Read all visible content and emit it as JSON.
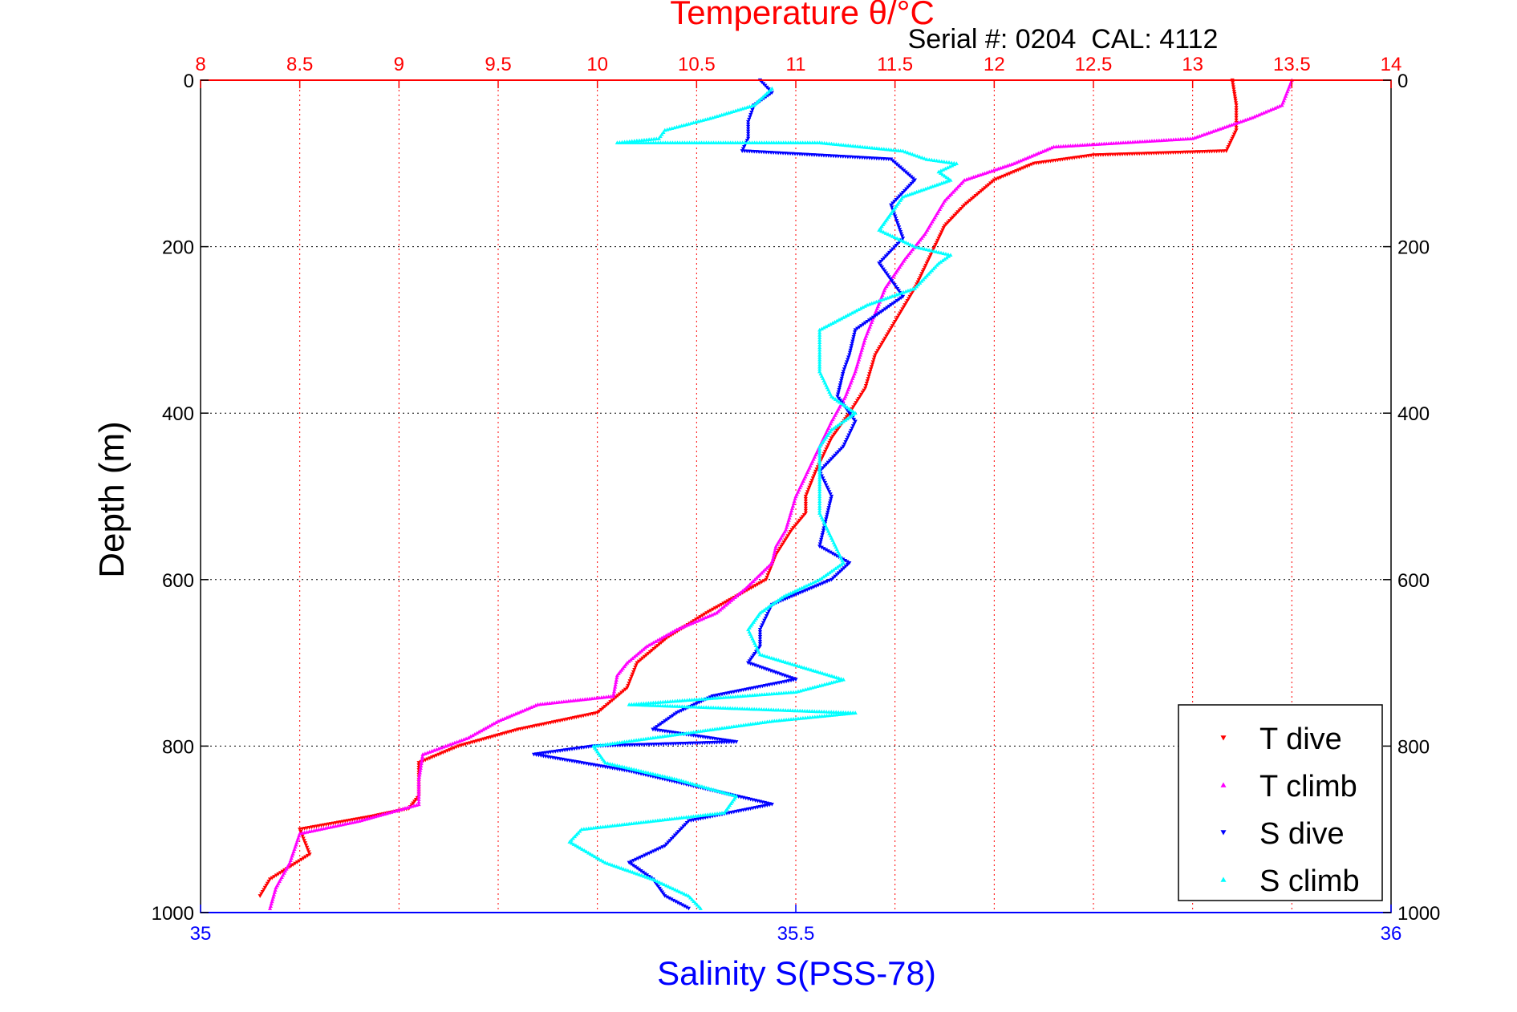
{
  "chart_data": {
    "type": "scatter",
    "title": "Temperature θ/°C",
    "subtitle": "Serial #: 0204  CAL: 4112",
    "ylabel": "Depth (m)",
    "xlabel_bottom": "Salinity S(PSS-78)",
    "y_reversed": true,
    "ylim": [
      0,
      1000
    ],
    "y_ticks": [
      "0",
      "200",
      "400",
      "600",
      "800",
      "1000"
    ],
    "x_top": {
      "label": "Temperature θ/°C",
      "lim": [
        8,
        14
      ],
      "ticks": [
        "8",
        "8.5",
        "9",
        "9.5",
        "10",
        "10.5",
        "11",
        "11.5",
        "12",
        "12.5",
        "13",
        "13.5",
        "14"
      ],
      "color": "#ff0000"
    },
    "x_bottom": {
      "label": "Salinity S(PSS-78)",
      "lim": [
        35,
        36
      ],
      "ticks": [
        "35",
        "35.5",
        "36"
      ],
      "color": "#0000ff"
    },
    "grid": true,
    "legend_position": "bottom-right",
    "series": [
      {
        "name": "T dive",
        "axis": "temperature",
        "color": "#ff0000",
        "marker": "triangle-down",
        "points": [
          [
            13.2,
            0
          ],
          [
            13.22,
            30
          ],
          [
            13.22,
            60
          ],
          [
            13.17,
            85
          ],
          [
            12.5,
            90
          ],
          [
            12.2,
            100
          ],
          [
            12.0,
            120
          ],
          [
            11.85,
            150
          ],
          [
            11.75,
            175
          ],
          [
            11.7,
            200
          ],
          [
            11.65,
            225
          ],
          [
            11.6,
            250
          ],
          [
            11.5,
            290
          ],
          [
            11.4,
            330
          ],
          [
            11.35,
            370
          ],
          [
            11.27,
            400
          ],
          [
            11.18,
            430
          ],
          [
            11.1,
            470
          ],
          [
            11.05,
            500
          ],
          [
            11.05,
            520
          ],
          [
            10.98,
            540
          ],
          [
            10.9,
            570
          ],
          [
            10.85,
            600
          ],
          [
            10.7,
            620
          ],
          [
            10.55,
            640
          ],
          [
            10.35,
            670
          ],
          [
            10.2,
            700
          ],
          [
            10.15,
            730
          ],
          [
            10.0,
            760
          ],
          [
            9.6,
            780
          ],
          [
            9.3,
            800
          ],
          [
            9.1,
            820
          ],
          [
            9.1,
            860
          ],
          [
            9.05,
            875
          ],
          [
            8.85,
            885
          ],
          [
            8.5,
            900
          ],
          [
            8.55,
            930
          ],
          [
            8.35,
            960
          ],
          [
            8.3,
            980
          ]
        ]
      },
      {
        "name": "T climb",
        "axis": "temperature",
        "color": "#ff00ff",
        "marker": "triangle-up",
        "points": [
          [
            13.5,
            0
          ],
          [
            13.45,
            30
          ],
          [
            13.3,
            45
          ],
          [
            13.0,
            70
          ],
          [
            12.3,
            80
          ],
          [
            12.1,
            100
          ],
          [
            11.85,
            120
          ],
          [
            11.75,
            145
          ],
          [
            11.7,
            165
          ],
          [
            11.65,
            185
          ],
          [
            11.55,
            215
          ],
          [
            11.45,
            250
          ],
          [
            11.4,
            280
          ],
          [
            11.35,
            310
          ],
          [
            11.3,
            350
          ],
          [
            11.25,
            380
          ],
          [
            11.18,
            410
          ],
          [
            11.1,
            450
          ],
          [
            11.0,
            500
          ],
          [
            10.95,
            540
          ],
          [
            10.9,
            560
          ],
          [
            10.88,
            580
          ],
          [
            10.75,
            610
          ],
          [
            10.6,
            640
          ],
          [
            10.4,
            660
          ],
          [
            10.25,
            680
          ],
          [
            10.15,
            700
          ],
          [
            10.1,
            715
          ],
          [
            10.08,
            740
          ],
          [
            9.7,
            750
          ],
          [
            9.5,
            770
          ],
          [
            9.35,
            790
          ],
          [
            9.12,
            810
          ],
          [
            9.1,
            840
          ],
          [
            9.1,
            870
          ],
          [
            8.8,
            890
          ],
          [
            8.5,
            905
          ],
          [
            8.45,
            940
          ],
          [
            8.38,
            970
          ],
          [
            8.35,
            995
          ]
        ]
      },
      {
        "name": "S dive",
        "axis": "salinity",
        "color": "#0000ff",
        "marker": "triangle-down",
        "points": [
          [
            35.47,
            0
          ],
          [
            35.48,
            15
          ],
          [
            35.465,
            30
          ],
          [
            35.46,
            50
          ],
          [
            35.46,
            70
          ],
          [
            35.455,
            85
          ],
          [
            35.58,
            95
          ],
          [
            35.6,
            120
          ],
          [
            35.58,
            150
          ],
          [
            35.59,
            190
          ],
          [
            35.57,
            220
          ],
          [
            35.59,
            260
          ],
          [
            35.55,
            300
          ],
          [
            35.545,
            330
          ],
          [
            35.54,
            350
          ],
          [
            35.535,
            380
          ],
          [
            35.55,
            410
          ],
          [
            35.54,
            440
          ],
          [
            35.52,
            470
          ],
          [
            35.53,
            500
          ],
          [
            35.525,
            530
          ],
          [
            35.52,
            560
          ],
          [
            35.545,
            580
          ],
          [
            35.53,
            600
          ],
          [
            35.48,
            630
          ],
          [
            35.47,
            660
          ],
          [
            35.47,
            680
          ],
          [
            35.46,
            700
          ],
          [
            35.5,
            720
          ],
          [
            35.43,
            740
          ],
          [
            35.4,
            760
          ],
          [
            35.38,
            780
          ],
          [
            35.45,
            795
          ],
          [
            35.33,
            800
          ],
          [
            35.28,
            810
          ],
          [
            35.36,
            830
          ],
          [
            35.42,
            850
          ],
          [
            35.48,
            870
          ],
          [
            35.41,
            890
          ],
          [
            35.39,
            920
          ],
          [
            35.36,
            940
          ],
          [
            35.38,
            960
          ],
          [
            35.39,
            980
          ],
          [
            35.41,
            995
          ]
        ]
      },
      {
        "name": "S climb",
        "axis": "salinity",
        "color": "#00ffff",
        "marker": "triangle-up",
        "points": [
          [
            35.48,
            10
          ],
          [
            35.465,
            30
          ],
          [
            35.43,
            45
          ],
          [
            35.39,
            60
          ],
          [
            35.385,
            70
          ],
          [
            35.35,
            75
          ],
          [
            35.52,
            75
          ],
          [
            35.59,
            85
          ],
          [
            35.61,
            95
          ],
          [
            35.635,
            100
          ],
          [
            35.62,
            110
          ],
          [
            35.63,
            120
          ],
          [
            35.59,
            140
          ],
          [
            35.58,
            160
          ],
          [
            35.57,
            180
          ],
          [
            35.6,
            200
          ],
          [
            35.63,
            210
          ],
          [
            35.62,
            220
          ],
          [
            35.6,
            250
          ],
          [
            35.56,
            270
          ],
          [
            35.52,
            300
          ],
          [
            35.52,
            330
          ],
          [
            35.52,
            350
          ],
          [
            35.53,
            380
          ],
          [
            35.55,
            400
          ],
          [
            35.53,
            420
          ],
          [
            35.52,
            440
          ],
          [
            35.52,
            480
          ],
          [
            35.52,
            520
          ],
          [
            35.53,
            550
          ],
          [
            35.54,
            580
          ],
          [
            35.52,
            600
          ],
          [
            35.49,
            620
          ],
          [
            35.47,
            640
          ],
          [
            35.46,
            660
          ],
          [
            35.47,
            690
          ],
          [
            35.54,
            720
          ],
          [
            35.5,
            735
          ],
          [
            35.36,
            750
          ],
          [
            35.55,
            760
          ],
          [
            35.48,
            770
          ],
          [
            35.43,
            780
          ],
          [
            35.38,
            790
          ],
          [
            35.33,
            800
          ],
          [
            35.34,
            820
          ],
          [
            35.4,
            840
          ],
          [
            35.45,
            860
          ],
          [
            35.44,
            880
          ],
          [
            35.32,
            900
          ],
          [
            35.31,
            915
          ],
          [
            35.34,
            940
          ],
          [
            35.38,
            960
          ],
          [
            35.41,
            980
          ],
          [
            35.42,
            995
          ]
        ]
      }
    ]
  }
}
